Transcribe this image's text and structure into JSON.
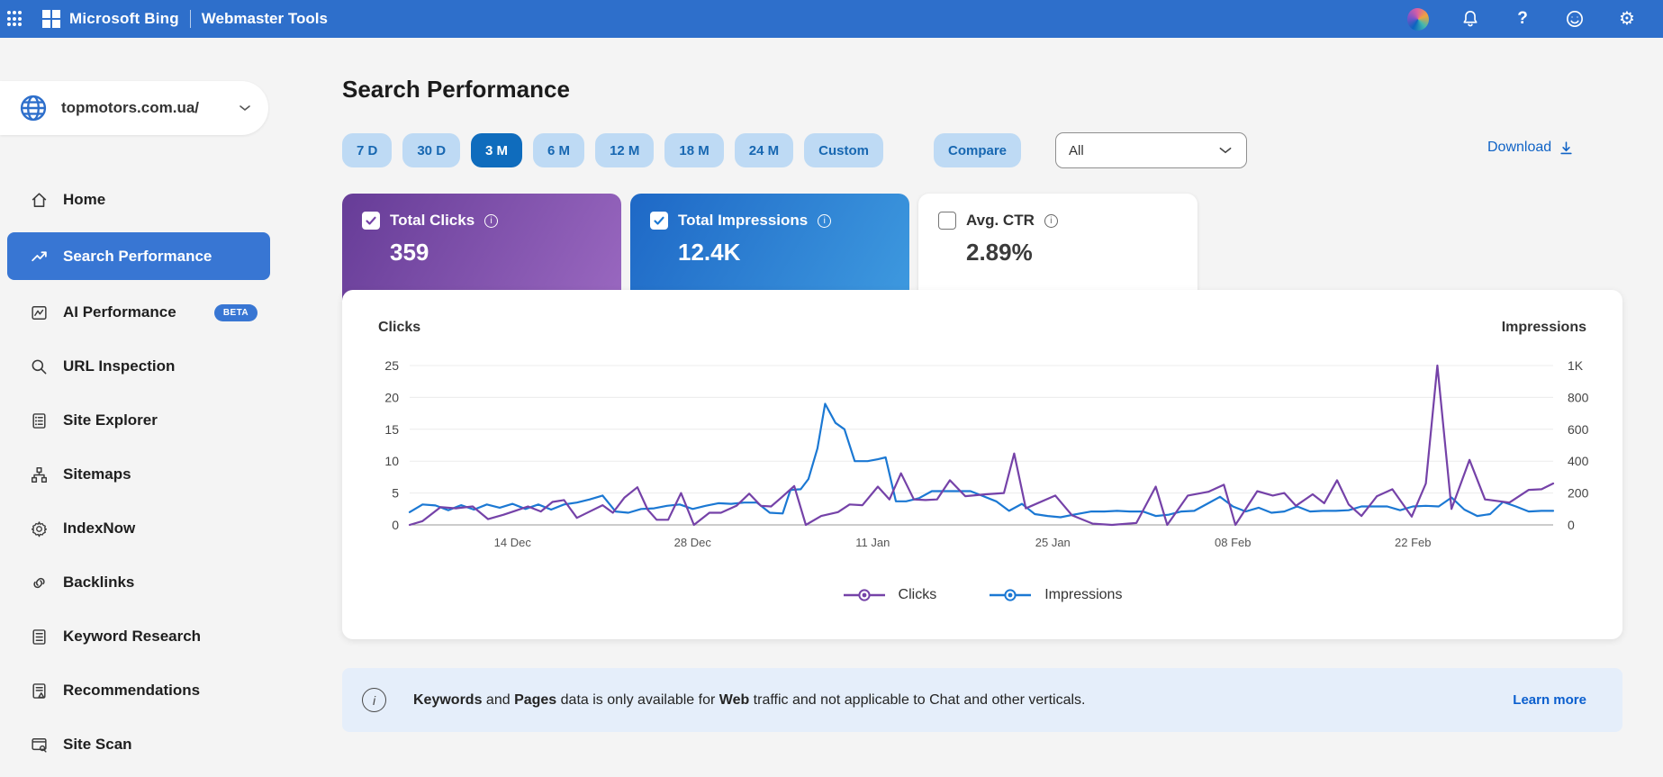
{
  "header": {
    "brand": "Microsoft Bing",
    "product": "Webmaster Tools",
    "icons": [
      "app-launcher-icon",
      "microsoft-logo",
      "copilot-icon",
      "notifications-bell-icon",
      "help-icon",
      "feedback-smiley-icon",
      "settings-gear-icon"
    ]
  },
  "sidebar": {
    "site": "topmotors.com.ua/",
    "items": [
      {
        "label": "Home",
        "icon": "home-icon",
        "selected": false
      },
      {
        "label": "Search Performance",
        "icon": "trend-icon",
        "selected": true
      },
      {
        "label": "AI Performance",
        "icon": "ai-chart-icon",
        "selected": false,
        "badge": "BETA"
      },
      {
        "label": "URL Inspection",
        "icon": "magnifier-icon",
        "selected": false
      },
      {
        "label": "Site Explorer",
        "icon": "document-list-icon",
        "selected": false
      },
      {
        "label": "Sitemaps",
        "icon": "sitemap-icon",
        "selected": false
      },
      {
        "label": "IndexNow",
        "icon": "gear-icon",
        "selected": false
      },
      {
        "label": "Backlinks",
        "icon": "link-icon",
        "selected": false
      },
      {
        "label": "Keyword Research",
        "icon": "keyword-list-icon",
        "selected": false
      },
      {
        "label": "Recommendations",
        "icon": "recommendations-icon",
        "selected": false
      },
      {
        "label": "Site Scan",
        "icon": "site-scan-icon",
        "selected": false
      }
    ]
  },
  "page": {
    "title": "Search Performance"
  },
  "toolbar": {
    "ranges": [
      "7 D",
      "30 D",
      "3 M",
      "6 M",
      "12 M",
      "18 M",
      "24 M",
      "Custom"
    ],
    "selected_index": 2,
    "compare_label": "Compare",
    "filter_value": "All",
    "download_label": "Download"
  },
  "metrics": [
    {
      "label": "Total Clicks",
      "value": "359",
      "checked": true,
      "style": "purple",
      "gradient": [
        "#663c97",
        "#9b69c1"
      ],
      "check_color": "#7542a8"
    },
    {
      "label": "Total Impressions",
      "value": "12.4K",
      "checked": true,
      "style": "blue",
      "gradient": [
        "#1e68c6",
        "#3f9be0"
      ],
      "check_color": "#1b78d3"
    },
    {
      "label": "Avg. CTR",
      "value": "2.89%",
      "checked": false,
      "style": "white"
    }
  ],
  "chart_data": {
    "type": "line",
    "left_axis": {
      "title": "Clicks",
      "ticks": [
        0,
        5,
        10,
        15,
        20,
        25
      ],
      "range": [
        0,
        25
      ]
    },
    "right_axis": {
      "title": "Impressions",
      "ticks": [
        "0",
        "200",
        "400",
        "600",
        "800",
        "1K"
      ],
      "range": [
        0,
        1000
      ]
    },
    "x_range": [
      0,
      88.9
    ],
    "x_ticks": [
      {
        "day": 8,
        "label": "14 Dec"
      },
      {
        "day": 22,
        "label": "28 Dec"
      },
      {
        "day": 36,
        "label": "11 Jan"
      },
      {
        "day": 50,
        "label": "25 Jan"
      },
      {
        "day": 64,
        "label": "08 Feb"
      },
      {
        "day": 78,
        "label": "22 Feb"
      }
    ],
    "grid": true,
    "legend_position": "bottom",
    "series": [
      {
        "name": "Impressions",
        "axis": "right",
        "color": "#1b78d3",
        "points": [
          [
            0,
            80
          ],
          [
            1,
            128
          ],
          [
            2,
            122
          ],
          [
            3,
            92
          ],
          [
            4,
            124
          ],
          [
            5,
            96
          ],
          [
            6,
            128
          ],
          [
            7,
            108
          ],
          [
            8,
            132
          ],
          [
            9,
            100
          ],
          [
            10,
            128
          ],
          [
            11,
            96
          ],
          [
            12,
            128
          ],
          [
            13,
            140
          ],
          [
            14,
            160
          ],
          [
            15,
            184
          ],
          [
            16,
            84
          ],
          [
            17,
            76
          ],
          [
            18,
            100
          ],
          [
            19,
            104
          ],
          [
            20,
            120
          ],
          [
            21,
            128
          ],
          [
            22,
            100
          ],
          [
            23,
            120
          ],
          [
            24,
            136
          ],
          [
            25,
            132
          ],
          [
            26,
            140
          ],
          [
            27,
            140
          ],
          [
            28,
            76
          ],
          [
            29,
            72
          ],
          [
            29.6,
            220
          ],
          [
            30.4,
            224
          ],
          [
            31,
            288
          ],
          [
            31.7,
            480
          ],
          [
            32.3,
            760
          ],
          [
            33.1,
            640
          ],
          [
            33.8,
            600
          ],
          [
            34.6,
            400
          ],
          [
            35.6,
            400
          ],
          [
            36.4,
            412
          ],
          [
            37,
            424
          ],
          [
            37.8,
            148
          ],
          [
            38.6,
            148
          ],
          [
            39.6,
            168
          ],
          [
            40.6,
            212
          ],
          [
            41.6,
            212
          ],
          [
            42.6,
            212
          ],
          [
            43.6,
            212
          ],
          [
            44.6,
            180
          ],
          [
            45.6,
            148
          ],
          [
            46.6,
            88
          ],
          [
            47.6,
            132
          ],
          [
            48.6,
            68
          ],
          [
            49.6,
            56
          ],
          [
            50.6,
            48
          ],
          [
            51.6,
            64
          ],
          [
            53,
            84
          ],
          [
            54,
            84
          ],
          [
            55,
            88
          ],
          [
            56,
            84
          ],
          [
            57,
            84
          ],
          [
            58,
            56
          ],
          [
            59,
            64
          ],
          [
            60,
            84
          ],
          [
            61,
            88
          ],
          [
            62,
            132
          ],
          [
            63,
            176
          ],
          [
            64,
            116
          ],
          [
            65,
            84
          ],
          [
            66,
            108
          ],
          [
            67,
            76
          ],
          [
            68,
            84
          ],
          [
            69,
            116
          ],
          [
            70,
            84
          ],
          [
            71,
            88
          ],
          [
            72,
            88
          ],
          [
            73,
            92
          ],
          [
            74,
            116
          ],
          [
            75,
            116
          ],
          [
            76,
            116
          ],
          [
            77,
            92
          ],
          [
            78,
            116
          ],
          [
            79,
            120
          ],
          [
            80,
            116
          ],
          [
            81,
            172
          ],
          [
            82,
            96
          ],
          [
            83,
            56
          ],
          [
            84,
            68
          ],
          [
            85,
            144
          ],
          [
            86,
            116
          ],
          [
            87,
            84
          ],
          [
            88,
            88
          ],
          [
            88.9,
            88
          ]
        ]
      },
      {
        "name": "Clicks",
        "axis": "left",
        "color": "#7542a8",
        "points": [
          [
            0,
            0
          ],
          [
            1,
            0.6
          ],
          [
            2.4,
            2.8
          ],
          [
            3.6,
            2.6
          ],
          [
            4.9,
            2.9
          ],
          [
            6.1,
            0.9
          ],
          [
            7.3,
            1.6
          ],
          [
            8.2,
            2.2
          ],
          [
            9.2,
            2.9
          ],
          [
            10.2,
            2.1
          ],
          [
            11.1,
            3.6
          ],
          [
            12,
            3.9
          ],
          [
            13,
            1.1
          ],
          [
            13.9,
            2
          ],
          [
            15,
            3.1
          ],
          [
            15.8,
            1.9
          ],
          [
            16.7,
            4.3
          ],
          [
            17.7,
            5.9
          ],
          [
            18.5,
            2.4
          ],
          [
            19.2,
            0.8
          ],
          [
            20.1,
            0.8
          ],
          [
            21.1,
            5
          ],
          [
            22.1,
            0
          ],
          [
            23.3,
            1.9
          ],
          [
            24.2,
            1.9
          ],
          [
            25.4,
            3
          ],
          [
            26.4,
            4.9
          ],
          [
            27.3,
            3
          ],
          [
            28.1,
            2.9
          ],
          [
            28.9,
            4.3
          ],
          [
            29.9,
            6.1
          ],
          [
            30.8,
            0
          ],
          [
            32,
            1.4
          ],
          [
            33.3,
            2
          ],
          [
            34.2,
            3.2
          ],
          [
            35.2,
            3.1
          ],
          [
            36.4,
            6
          ],
          [
            37.3,
            4
          ],
          [
            38.2,
            8.1
          ],
          [
            39.2,
            4
          ],
          [
            40.1,
            3.9
          ],
          [
            41,
            4
          ],
          [
            42,
            7
          ],
          [
            43.2,
            4.5
          ],
          [
            44.8,
            4.8
          ],
          [
            46.2,
            5
          ],
          [
            47,
            11.2
          ],
          [
            47.9,
            2.6
          ],
          [
            50.2,
            4.6
          ],
          [
            51.5,
            1.5
          ],
          [
            53.1,
            0.2
          ],
          [
            54.6,
            0
          ],
          [
            56.5,
            0.3
          ],
          [
            58,
            6
          ],
          [
            58.9,
            0
          ],
          [
            60.5,
            4.6
          ],
          [
            62.1,
            5.2
          ],
          [
            63.3,
            6.3
          ],
          [
            64.2,
            0
          ],
          [
            65.9,
            5.3
          ],
          [
            67.1,
            4.6
          ],
          [
            68,
            5
          ],
          [
            68.9,
            3
          ],
          [
            70.2,
            4.8
          ],
          [
            71.1,
            3.4
          ],
          [
            72.1,
            7
          ],
          [
            73,
            3.2
          ],
          [
            74,
            1.4
          ],
          [
            75.2,
            4.5
          ],
          [
            76.4,
            5.6
          ],
          [
            77.9,
            1.3
          ],
          [
            79,
            6.5
          ],
          [
            79.9,
            25
          ],
          [
            81,
            2.5
          ],
          [
            82.4,
            10.2
          ],
          [
            83.6,
            4
          ],
          [
            85.5,
            3.5
          ],
          [
            87,
            5.5
          ],
          [
            88,
            5.6
          ],
          [
            88.9,
            6.5
          ]
        ]
      }
    ],
    "legend": [
      "Clicks",
      "Impressions"
    ]
  },
  "banner": {
    "segments": [
      {
        "text": "Keywords",
        "bold": true
      },
      {
        "text": " and ",
        "bold": false
      },
      {
        "text": "Pages",
        "bold": true
      },
      {
        "text": " data is only available for ",
        "bold": false
      },
      {
        "text": "Web",
        "bold": true
      },
      {
        "text": " traffic and not applicable to Chat and other verticals.",
        "bold": false
      }
    ],
    "link_label": "Learn more"
  },
  "colors": {
    "topbar": "#2e6fcb",
    "sidebar_selected": "#3876d3",
    "pill_bg": "#bedaf4",
    "pill_text": "#1767b1",
    "pill_selected": "#0f6cbd",
    "clicks_line": "#7542a8",
    "impressions_line": "#1b78d3",
    "banner_bg": "#e5eefa",
    "link": "#0b5fce",
    "background": "#f4f4f4"
  }
}
